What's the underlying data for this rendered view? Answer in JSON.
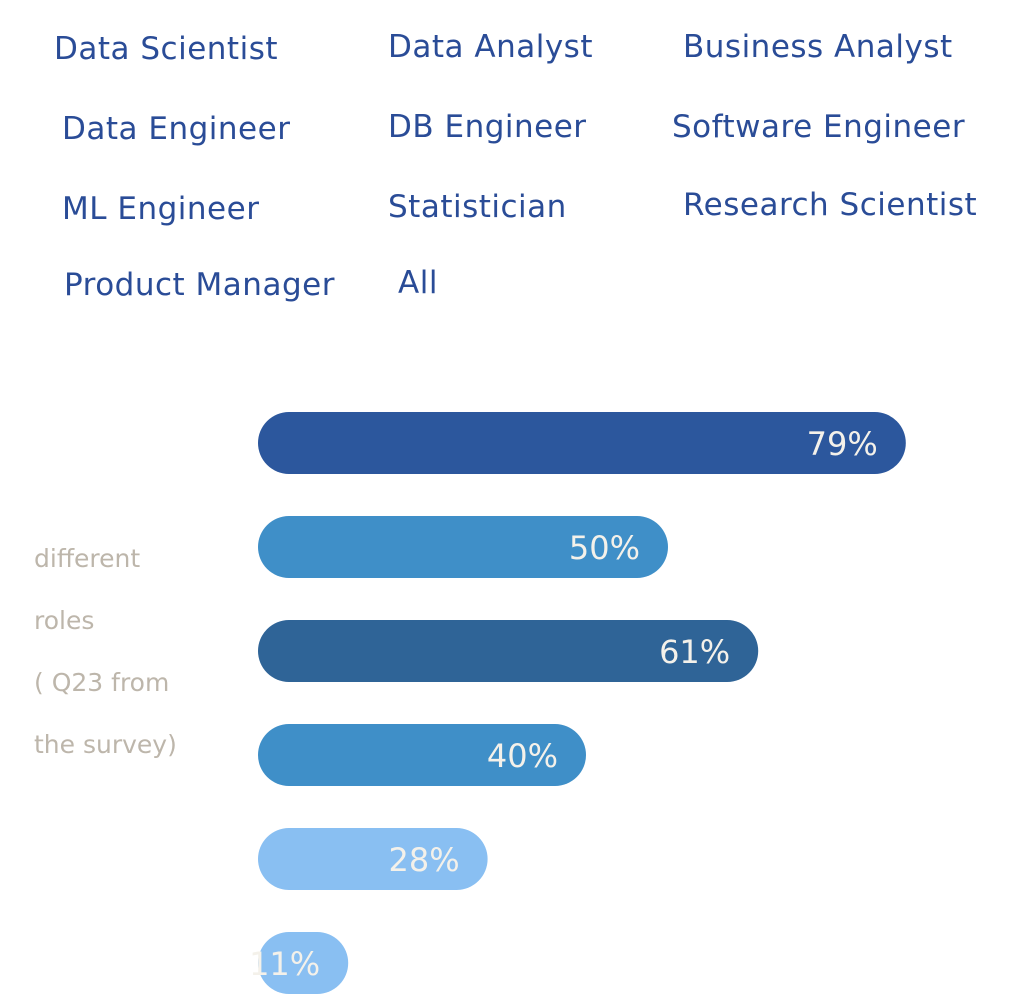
{
  "roles": [
    "Data Scientist",
    "Data Analyst",
    "Business Analyst",
    "Data Engineer",
    "DB Engineer",
    "Software Engineer",
    "ML Engineer",
    "Statistician",
    "Research Scientist",
    "Product Manager",
    "All"
  ],
  "side_note": [
    "different",
    "roles",
    "( Q23 from",
    "the survey)"
  ],
  "colors": {
    "role_text": "#2a4c97",
    "side_note_text": "#bdb6ab",
    "label_text": "#f4f1ea"
  },
  "chart_data": {
    "type": "bar",
    "orientation": "horizontal",
    "values": [
      79,
      50,
      61,
      40,
      28,
      11
    ],
    "labels": [
      "79%",
      "50%",
      "61%",
      "40%",
      "28%",
      "11%"
    ],
    "colors": [
      "#2c579d",
      "#3f8fc8",
      "#2f6497",
      "#3f8fc8",
      "#89bff2",
      "#89bff2"
    ],
    "xlim": [
      0,
      100
    ],
    "grid": false,
    "legend": "none"
  }
}
